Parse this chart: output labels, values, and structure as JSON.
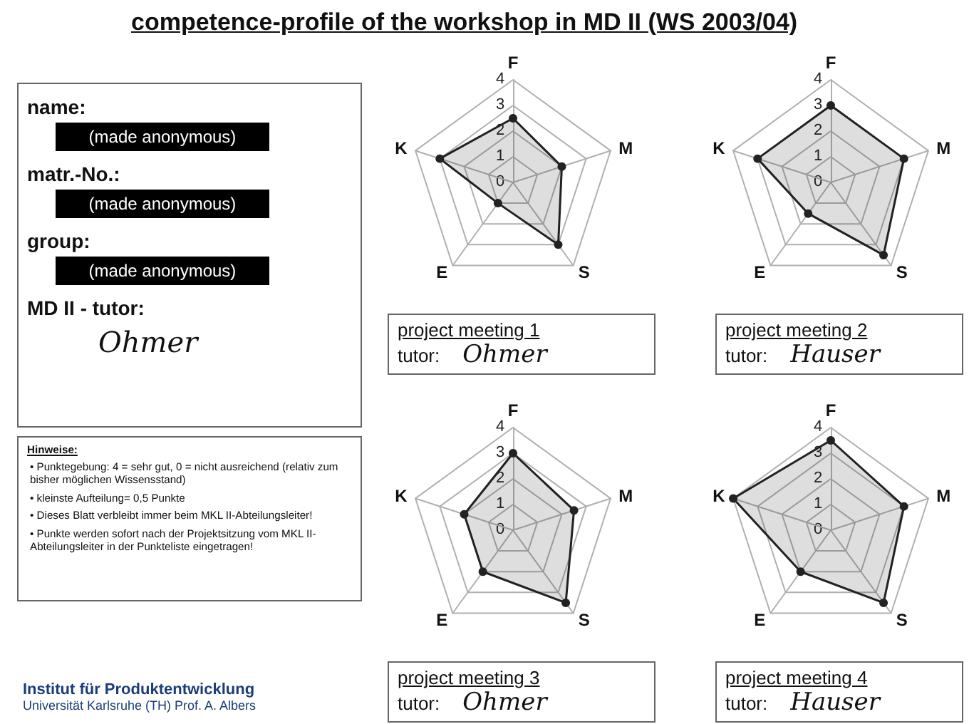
{
  "chart_data": [
    {
      "type": "other",
      "title": "competence-profile of the workshop in MD II (WS 2003/04)",
      "annotations": [
        "name:",
        "(made anonymous)",
        "matr.-No.:",
        "(made anonymous)",
        "group:",
        "(made anonymous)",
        "MD II - tutor:",
        "Ohmer",
        "Hinweise:",
        "• Punktegebung: 4 = sehr gut, 0 = nicht ausreichend (relativ zum bisher möglichen Wissensstand)",
        "• kleinste Aufteilung= 0,5 Punkte",
        "• Dieses Blatt verbleibt immer beim MKL II-Abteilungsleiter!",
        "• Punkte werden sofort nach der Projektsitzung vom MKL II-Abteilungsleiter in der Punkteliste eingetragen!",
        "Institut für Produktentwicklung",
        "Universität Karlsruhe (TH) Prof. A. Albers"
      ]
    },
    {
      "type": "radar",
      "title": "project meeting 1",
      "annotations": [
        "tutor:",
        "Ohmer"
      ],
      "categories": [
        "F",
        "M",
        "S",
        "E",
        "K"
      ],
      "ylim": [
        0,
        4
      ],
      "yticks": [
        0,
        1,
        2,
        3,
        4
      ],
      "marker": "circle",
      "series": [
        {
          "color": "#222222",
          "values": [
            2.5,
            2,
            3,
            1,
            3
          ]
        }
      ]
    },
    {
      "type": "radar",
      "title": "project meeting 2",
      "annotations": [
        "tutor:",
        "Hauser"
      ],
      "categories": [
        "F",
        "M",
        "S",
        "E",
        "K"
      ],
      "ylim": [
        0,
        4
      ],
      "yticks": [
        0,
        1,
        2,
        3,
        4
      ],
      "marker": "circle",
      "series": [
        {
          "color": "#222222",
          "values": [
            3,
            3,
            3.5,
            1.5,
            3
          ]
        }
      ]
    },
    {
      "type": "radar",
      "title": "project meeting 3",
      "annotations": [
        "tutor:",
        "Ohmer"
      ],
      "categories": [
        "F",
        "M",
        "S",
        "E",
        "K"
      ],
      "ylim": [
        0,
        4
      ],
      "yticks": [
        0,
        1,
        2,
        3,
        4
      ],
      "marker": "circle",
      "series": [
        {
          "color": "#222222",
          "values": [
            3,
            2.5,
            3.5,
            2,
            2
          ]
        }
      ]
    },
    {
      "type": "radar",
      "title": "project meeting 4",
      "annotations": [
        "tutor:",
        "Hauser"
      ],
      "categories": [
        "F",
        "M",
        "S",
        "E",
        "K"
      ],
      "ylim": [
        0,
        4
      ],
      "yticks": [
        0,
        1,
        2,
        3,
        4
      ],
      "marker": "circle",
      "series": [
        {
          "color": "#222222",
          "values": [
            3.5,
            3,
            3.5,
            2,
            4
          ]
        }
      ]
    }
  ]
}
